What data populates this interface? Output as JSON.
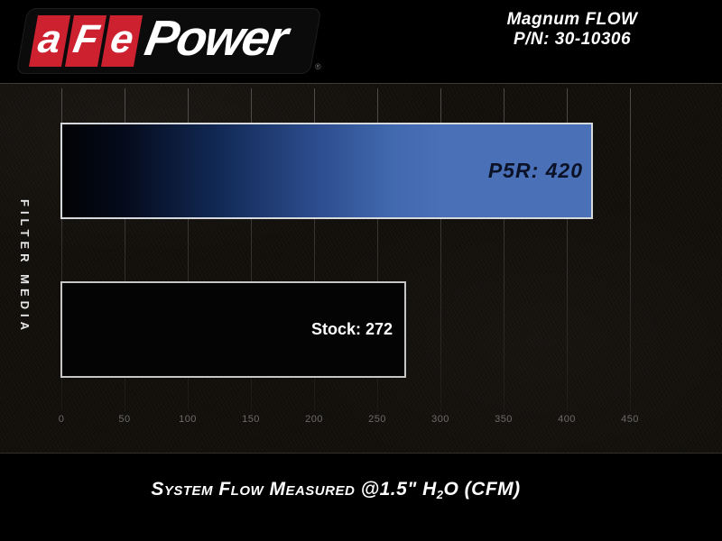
{
  "header": {
    "logo": {
      "afe": [
        "a",
        "F",
        "e"
      ],
      "power": "Power",
      "registered": "®"
    },
    "product": {
      "line1": "Magnum FLOW",
      "line2": "P/N: 30-10306"
    }
  },
  "chart": {
    "y_axis_label": "FILTER MEDIA",
    "bars": [
      {
        "name": "P5R",
        "value": 420,
        "label": "P5R: 420"
      },
      {
        "name": "Stock",
        "value": 272,
        "label": "Stock: 272"
      }
    ],
    "x_ticks": [
      "0",
      "50",
      "100",
      "150",
      "200",
      "250",
      "300",
      "350",
      "400",
      "450"
    ]
  },
  "caption": {
    "part1": "System Flow Measured @1.5\" H",
    "subscript": "2",
    "part2": "O (CFM)"
  },
  "colors": {
    "bar_blue": "#4a70b8",
    "afe_red": "#cd2130",
    "stock_bar_fill": "#040404",
    "bar_border": "#d5d8dc",
    "background": "#000000",
    "plot_background": "#14110d",
    "tick_label": "#6b6b6b"
  },
  "chart_data": {
    "type": "bar",
    "orientation": "horizontal",
    "title": "Magnum FLOW P/N: 30-10306",
    "categories": [
      "P5R",
      "Stock"
    ],
    "values": [
      420,
      272
    ],
    "value_labels": [
      "P5R: 420",
      "Stock: 272"
    ],
    "xlabel": "System Flow Measured @1.5\" H2O (CFM)",
    "ylabel": "FILTER MEDIA",
    "xlim": [
      0,
      500
    ],
    "x_ticks": [
      0,
      50,
      100,
      150,
      200,
      250,
      300,
      350,
      400,
      450
    ],
    "grid": "vertical",
    "legend": false,
    "units": "CFM"
  }
}
